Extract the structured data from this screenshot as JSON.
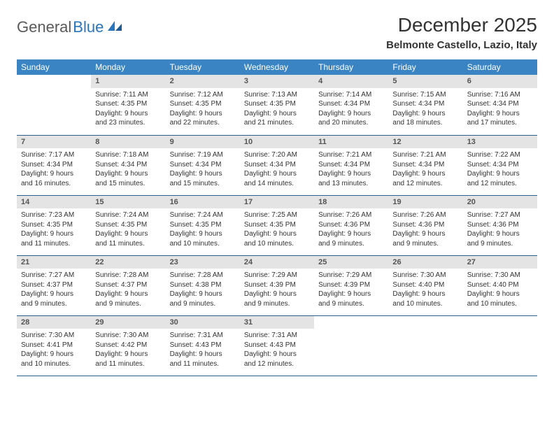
{
  "brand": {
    "word1": "General",
    "word2": "Blue"
  },
  "title": "December 2025",
  "location": "Belmonte Castello, Lazio, Italy",
  "colors": {
    "header_bg": "#3b84c4",
    "header_text": "#ffffff",
    "daynum_bg": "#e4e4e4",
    "row_border": "#2c5f8d",
    "logo_gray": "#5a5a5a",
    "logo_blue": "#2a75bb"
  },
  "weekdays": [
    "Sunday",
    "Monday",
    "Tuesday",
    "Wednesday",
    "Thursday",
    "Friday",
    "Saturday"
  ],
  "weeks": [
    [
      {
        "n": "",
        "sr": "",
        "ss": "",
        "dl": ""
      },
      {
        "n": "1",
        "sr": "Sunrise: 7:11 AM",
        "ss": "Sunset: 4:35 PM",
        "dl": "Daylight: 9 hours and 23 minutes."
      },
      {
        "n": "2",
        "sr": "Sunrise: 7:12 AM",
        "ss": "Sunset: 4:35 PM",
        "dl": "Daylight: 9 hours and 22 minutes."
      },
      {
        "n": "3",
        "sr": "Sunrise: 7:13 AM",
        "ss": "Sunset: 4:35 PM",
        "dl": "Daylight: 9 hours and 21 minutes."
      },
      {
        "n": "4",
        "sr": "Sunrise: 7:14 AM",
        "ss": "Sunset: 4:34 PM",
        "dl": "Daylight: 9 hours and 20 minutes."
      },
      {
        "n": "5",
        "sr": "Sunrise: 7:15 AM",
        "ss": "Sunset: 4:34 PM",
        "dl": "Daylight: 9 hours and 18 minutes."
      },
      {
        "n": "6",
        "sr": "Sunrise: 7:16 AM",
        "ss": "Sunset: 4:34 PM",
        "dl": "Daylight: 9 hours and 17 minutes."
      }
    ],
    [
      {
        "n": "7",
        "sr": "Sunrise: 7:17 AM",
        "ss": "Sunset: 4:34 PM",
        "dl": "Daylight: 9 hours and 16 minutes."
      },
      {
        "n": "8",
        "sr": "Sunrise: 7:18 AM",
        "ss": "Sunset: 4:34 PM",
        "dl": "Daylight: 9 hours and 15 minutes."
      },
      {
        "n": "9",
        "sr": "Sunrise: 7:19 AM",
        "ss": "Sunset: 4:34 PM",
        "dl": "Daylight: 9 hours and 15 minutes."
      },
      {
        "n": "10",
        "sr": "Sunrise: 7:20 AM",
        "ss": "Sunset: 4:34 PM",
        "dl": "Daylight: 9 hours and 14 minutes."
      },
      {
        "n": "11",
        "sr": "Sunrise: 7:21 AM",
        "ss": "Sunset: 4:34 PM",
        "dl": "Daylight: 9 hours and 13 minutes."
      },
      {
        "n": "12",
        "sr": "Sunrise: 7:21 AM",
        "ss": "Sunset: 4:34 PM",
        "dl": "Daylight: 9 hours and 12 minutes."
      },
      {
        "n": "13",
        "sr": "Sunrise: 7:22 AM",
        "ss": "Sunset: 4:34 PM",
        "dl": "Daylight: 9 hours and 12 minutes."
      }
    ],
    [
      {
        "n": "14",
        "sr": "Sunrise: 7:23 AM",
        "ss": "Sunset: 4:35 PM",
        "dl": "Daylight: 9 hours and 11 minutes."
      },
      {
        "n": "15",
        "sr": "Sunrise: 7:24 AM",
        "ss": "Sunset: 4:35 PM",
        "dl": "Daylight: 9 hours and 11 minutes."
      },
      {
        "n": "16",
        "sr": "Sunrise: 7:24 AM",
        "ss": "Sunset: 4:35 PM",
        "dl": "Daylight: 9 hours and 10 minutes."
      },
      {
        "n": "17",
        "sr": "Sunrise: 7:25 AM",
        "ss": "Sunset: 4:35 PM",
        "dl": "Daylight: 9 hours and 10 minutes."
      },
      {
        "n": "18",
        "sr": "Sunrise: 7:26 AM",
        "ss": "Sunset: 4:36 PM",
        "dl": "Daylight: 9 hours and 9 minutes."
      },
      {
        "n": "19",
        "sr": "Sunrise: 7:26 AM",
        "ss": "Sunset: 4:36 PM",
        "dl": "Daylight: 9 hours and 9 minutes."
      },
      {
        "n": "20",
        "sr": "Sunrise: 7:27 AM",
        "ss": "Sunset: 4:36 PM",
        "dl": "Daylight: 9 hours and 9 minutes."
      }
    ],
    [
      {
        "n": "21",
        "sr": "Sunrise: 7:27 AM",
        "ss": "Sunset: 4:37 PM",
        "dl": "Daylight: 9 hours and 9 minutes."
      },
      {
        "n": "22",
        "sr": "Sunrise: 7:28 AM",
        "ss": "Sunset: 4:37 PM",
        "dl": "Daylight: 9 hours and 9 minutes."
      },
      {
        "n": "23",
        "sr": "Sunrise: 7:28 AM",
        "ss": "Sunset: 4:38 PM",
        "dl": "Daylight: 9 hours and 9 minutes."
      },
      {
        "n": "24",
        "sr": "Sunrise: 7:29 AM",
        "ss": "Sunset: 4:39 PM",
        "dl": "Daylight: 9 hours and 9 minutes."
      },
      {
        "n": "25",
        "sr": "Sunrise: 7:29 AM",
        "ss": "Sunset: 4:39 PM",
        "dl": "Daylight: 9 hours and 9 minutes."
      },
      {
        "n": "26",
        "sr": "Sunrise: 7:30 AM",
        "ss": "Sunset: 4:40 PM",
        "dl": "Daylight: 9 hours and 10 minutes."
      },
      {
        "n": "27",
        "sr": "Sunrise: 7:30 AM",
        "ss": "Sunset: 4:40 PM",
        "dl": "Daylight: 9 hours and 10 minutes."
      }
    ],
    [
      {
        "n": "28",
        "sr": "Sunrise: 7:30 AM",
        "ss": "Sunset: 4:41 PM",
        "dl": "Daylight: 9 hours and 10 minutes."
      },
      {
        "n": "29",
        "sr": "Sunrise: 7:30 AM",
        "ss": "Sunset: 4:42 PM",
        "dl": "Daylight: 9 hours and 11 minutes."
      },
      {
        "n": "30",
        "sr": "Sunrise: 7:31 AM",
        "ss": "Sunset: 4:43 PM",
        "dl": "Daylight: 9 hours and 11 minutes."
      },
      {
        "n": "31",
        "sr": "Sunrise: 7:31 AM",
        "ss": "Sunset: 4:43 PM",
        "dl": "Daylight: 9 hours and 12 minutes."
      },
      {
        "n": "",
        "sr": "",
        "ss": "",
        "dl": ""
      },
      {
        "n": "",
        "sr": "",
        "ss": "",
        "dl": ""
      },
      {
        "n": "",
        "sr": "",
        "ss": "",
        "dl": ""
      }
    ]
  ]
}
